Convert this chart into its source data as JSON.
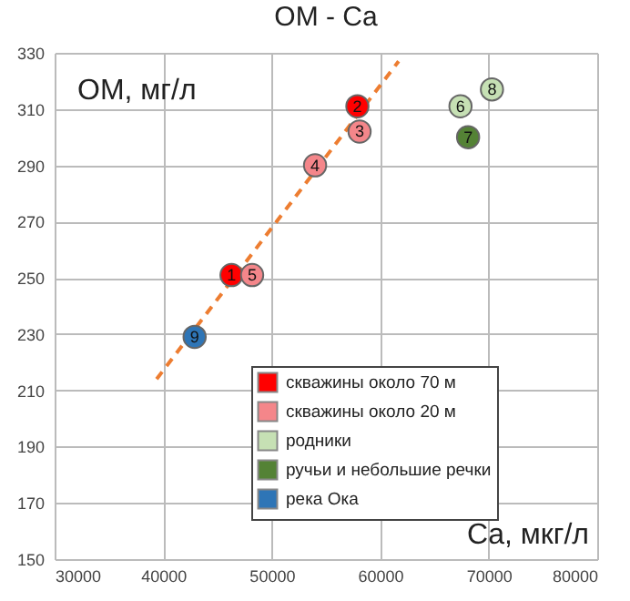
{
  "chart_data": {
    "type": "scatter",
    "title": "OM - Ca",
    "xlabel": "Ca, мкг/л",
    "ylabel": "OM, мг/л",
    "xlim": [
      30000,
      80000
    ],
    "xticks": [
      30000,
      40000,
      50000,
      60000,
      70000,
      80000
    ],
    "ylim": [
      150,
      330
    ],
    "yticks": [
      150,
      170,
      190,
      210,
      230,
      250,
      270,
      290,
      310,
      330
    ],
    "grid": true,
    "legend": "bottom right",
    "marker": "circle",
    "series": [
      {
        "name": "скважины около 70 м",
        "color": "#ff0000",
        "x": [
          46300,
          57900
        ],
        "values": [
          251,
          311
        ]
      },
      {
        "name": "скважины около 20 м",
        "color": "#f4868a",
        "x": [
          58100,
          54000,
          48200
        ],
        "values": [
          302,
          290,
          251
        ]
      },
      {
        "name": "родники",
        "color": "#c6e0b4",
        "x": [
          67400,
          70300
        ],
        "values": [
          311,
          317
        ]
      },
      {
        "name": "ручьи и небольшие речки",
        "color": "#548235",
        "x": [
          68100
        ],
        "values": [
          300
        ]
      },
      {
        "name": "река Ока",
        "color": "#2e75b6",
        "x": [
          42900
        ],
        "values": [
          229
        ]
      },
      {
        "type": "line",
        "color": "#ed7d31",
        "line_style": "dashed",
        "marker": "none",
        "x": [
          39400,
          61700
        ],
        "values": [
          214,
          327
        ]
      }
    ],
    "annotations": [
      {
        "text": "1",
        "x": 46300,
        "y": 251
      },
      {
        "text": "2",
        "x": 57900,
        "y": 311
      },
      {
        "text": "3",
        "x": 58100,
        "y": 302
      },
      {
        "text": "4",
        "x": 54000,
        "y": 290
      },
      {
        "text": "5",
        "x": 48200,
        "y": 251
      },
      {
        "text": "6",
        "x": 67400,
        "y": 311
      },
      {
        "text": "7",
        "x": 68100,
        "y": 300
      },
      {
        "text": "8",
        "x": 70300,
        "y": 317
      },
      {
        "text": "9",
        "x": 42900,
        "y": 229
      }
    ]
  }
}
